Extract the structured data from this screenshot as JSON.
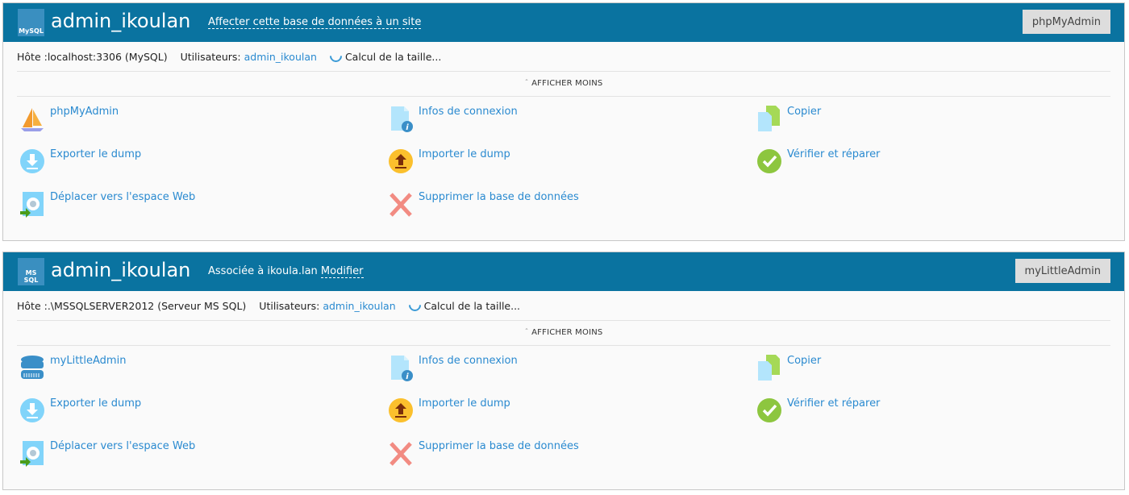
{
  "panels": [
    {
      "db_type": "MySQL",
      "title": "admin_ikoulan",
      "header_link_prefix": "",
      "header_link": "Affecter cette base de données à un site",
      "header_button": "phpMyAdmin",
      "host": "Hôte :localhost:3306 (MySQL)",
      "users_label": "Utilisateurs:",
      "users_value": "admin_ikoulan",
      "size_status": "Calcul de la taille...",
      "toggle": "AFFICHER MOINS",
      "actions": [
        {
          "label": "phpMyAdmin",
          "icon": "phpmyadmin-icon"
        },
        {
          "label": "Infos de connexion",
          "icon": "connection-info-icon"
        },
        {
          "label": "Copier",
          "icon": "copy-icon"
        },
        {
          "label": "Exporter le dump",
          "icon": "export-icon"
        },
        {
          "label": "Importer le dump",
          "icon": "import-icon"
        },
        {
          "label": "Vérifier et réparer",
          "icon": "check-icon"
        },
        {
          "label": "Déplacer vers l'espace Web",
          "icon": "move-icon"
        },
        {
          "label": "Supprimer la base de données",
          "icon": "delete-icon"
        }
      ]
    },
    {
      "db_type": "MS SQL",
      "title": "admin_ikoulan",
      "header_link_prefix": "Associée à ikoula.lan",
      "header_link": "Modifier",
      "header_button": "myLittleAdmin",
      "host": "Hôte :.\\MSSQLSERVER2012 (Serveur MS SQL)",
      "users_label": "Utilisateurs:",
      "users_value": "admin_ikoulan",
      "size_status": "Calcul de la taille...",
      "toggle": "AFFICHER MOINS",
      "actions": [
        {
          "label": "myLittleAdmin",
          "icon": "database-icon"
        },
        {
          "label": "Infos de connexion",
          "icon": "connection-info-icon"
        },
        {
          "label": "Copier",
          "icon": "copy-icon"
        },
        {
          "label": "Exporter le dump",
          "icon": "export-icon"
        },
        {
          "label": "Importer le dump",
          "icon": "import-icon"
        },
        {
          "label": "Vérifier et réparer",
          "icon": "check-icon"
        },
        {
          "label": "Déplacer vers l'espace Web",
          "icon": "move-icon"
        },
        {
          "label": "Supprimer la base de données",
          "icon": "delete-icon"
        }
      ]
    }
  ],
  "colors": {
    "header": "#0a73a0",
    "link": "#2a8ad0"
  }
}
